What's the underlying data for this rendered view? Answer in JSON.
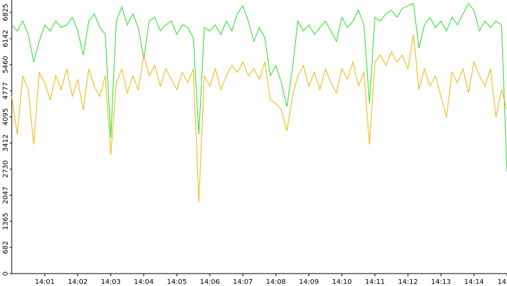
{
  "chart_data": {
    "type": "line",
    "x": [
      50400,
      50410,
      50420,
      50430,
      50440,
      50450,
      50460,
      50470,
      50480,
      50490,
      50500,
      50510,
      50520,
      50530,
      50540,
      50550,
      50560,
      50570,
      50580,
      50590,
      50600,
      50610,
      50620,
      50630,
      50640,
      50650,
      50660,
      50670,
      50680,
      50690,
      50700,
      50710,
      50720,
      50730,
      50740,
      50750,
      50760,
      50770,
      50780,
      50790,
      50800,
      50810,
      50820,
      50830,
      50840,
      50850,
      50860,
      50870,
      50880,
      50890,
      50900,
      50910,
      50920,
      50930,
      50940,
      50950,
      50960,
      50970,
      50980,
      50990,
      51000,
      51010,
      51020,
      51030,
      51040,
      51050,
      51060,
      51070,
      51080,
      51090,
      51100,
      51110,
      51120,
      51130,
      51140,
      51150,
      51160,
      51170,
      51180,
      51190,
      51200,
      51210,
      51220,
      51230,
      51240,
      51250,
      51260,
      51270,
      51280,
      51290,
      51300
    ],
    "series": [
      {
        "color": "#22dd22",
        "values": [
          6500,
          6340,
          6600,
          6250,
          5530,
          6070,
          6500,
          6340,
          6600,
          6430,
          6500,
          6700,
          6340,
          5710,
          6600,
          6790,
          6430,
          6250,
          3550,
          6600,
          6970,
          6500,
          6790,
          6430,
          5620,
          6600,
          6700,
          6340,
          6500,
          6600,
          6250,
          6500,
          6430,
          6160,
          3640,
          6430,
          6340,
          6500,
          6250,
          6600,
          6340,
          6790,
          7000,
          6600,
          6070,
          6430,
          6160,
          5170,
          5440,
          4990,
          4360,
          5350,
          6600,
          6340,
          6500,
          6250,
          6430,
          6600,
          6340,
          6070,
          6700,
          6430,
          6600,
          6880,
          6500,
          4450,
          6700,
          6600,
          6790,
          6880,
          6700,
          6930,
          7000,
          7060,
          5890,
          6500,
          6700,
          6430,
          6600,
          6340,
          6700,
          6500,
          6790,
          7060,
          6880,
          6340,
          6600,
          6430,
          6600,
          6500,
          2650
        ]
      },
      {
        "color": "#f0b400",
        "values": [
          4630,
          3640,
          5170,
          4810,
          3370,
          5260,
          4990,
          4540,
          5170,
          4810,
          5350,
          4630,
          5080,
          4270,
          5350,
          4900,
          4630,
          5170,
          3100,
          4990,
          5350,
          4720,
          5170,
          4810,
          5710,
          5170,
          5440,
          4900,
          5350,
          5080,
          4810,
          5260,
          4990,
          5350,
          1870,
          5170,
          4900,
          5350,
          4810,
          5170,
          5440,
          5260,
          5530,
          5170,
          5350,
          5080,
          5530,
          4540,
          4450,
          4270,
          3730,
          4630,
          5170,
          5440,
          4900,
          5260,
          4810,
          5350,
          4990,
          4720,
          5350,
          5080,
          5530,
          4900,
          5260,
          3370,
          5530,
          5710,
          5440,
          5800,
          5530,
          5710,
          5350,
          6250,
          4810,
          5350,
          4900,
          5170,
          4630,
          4090,
          5260,
          4990,
          5350,
          4720,
          5530,
          5170,
          4900,
          5350,
          4090,
          4810,
          4270
        ]
      }
    ],
    "xlim": [
      50400,
      51300
    ],
    "xticks": [
      {
        "value": 50460,
        "label": "14:01"
      },
      {
        "value": 50520,
        "label": "14:02"
      },
      {
        "value": 50580,
        "label": "14:03"
      },
      {
        "value": 50640,
        "label": "14:04"
      },
      {
        "value": 50700,
        "label": "14:05"
      },
      {
        "value": 50760,
        "label": "14:06"
      },
      {
        "value": 50820,
        "label": "14:07"
      },
      {
        "value": 50880,
        "label": "14:08"
      },
      {
        "value": 50940,
        "label": "14:09"
      },
      {
        "value": 51000,
        "label": "14:10"
      },
      {
        "value": 51060,
        "label": "14:11"
      },
      {
        "value": 51120,
        "label": "14:12"
      },
      {
        "value": 51180,
        "label": "14:13"
      },
      {
        "value": 51240,
        "label": "14:14"
      },
      {
        "value": 51300,
        "label": "14"
      }
    ],
    "ylim": [
      0,
      7150
    ],
    "yticks": [
      0,
      682,
      1365,
      2047,
      2730,
      3412,
      4095,
      4777,
      5460,
      6142,
      6825
    ]
  }
}
